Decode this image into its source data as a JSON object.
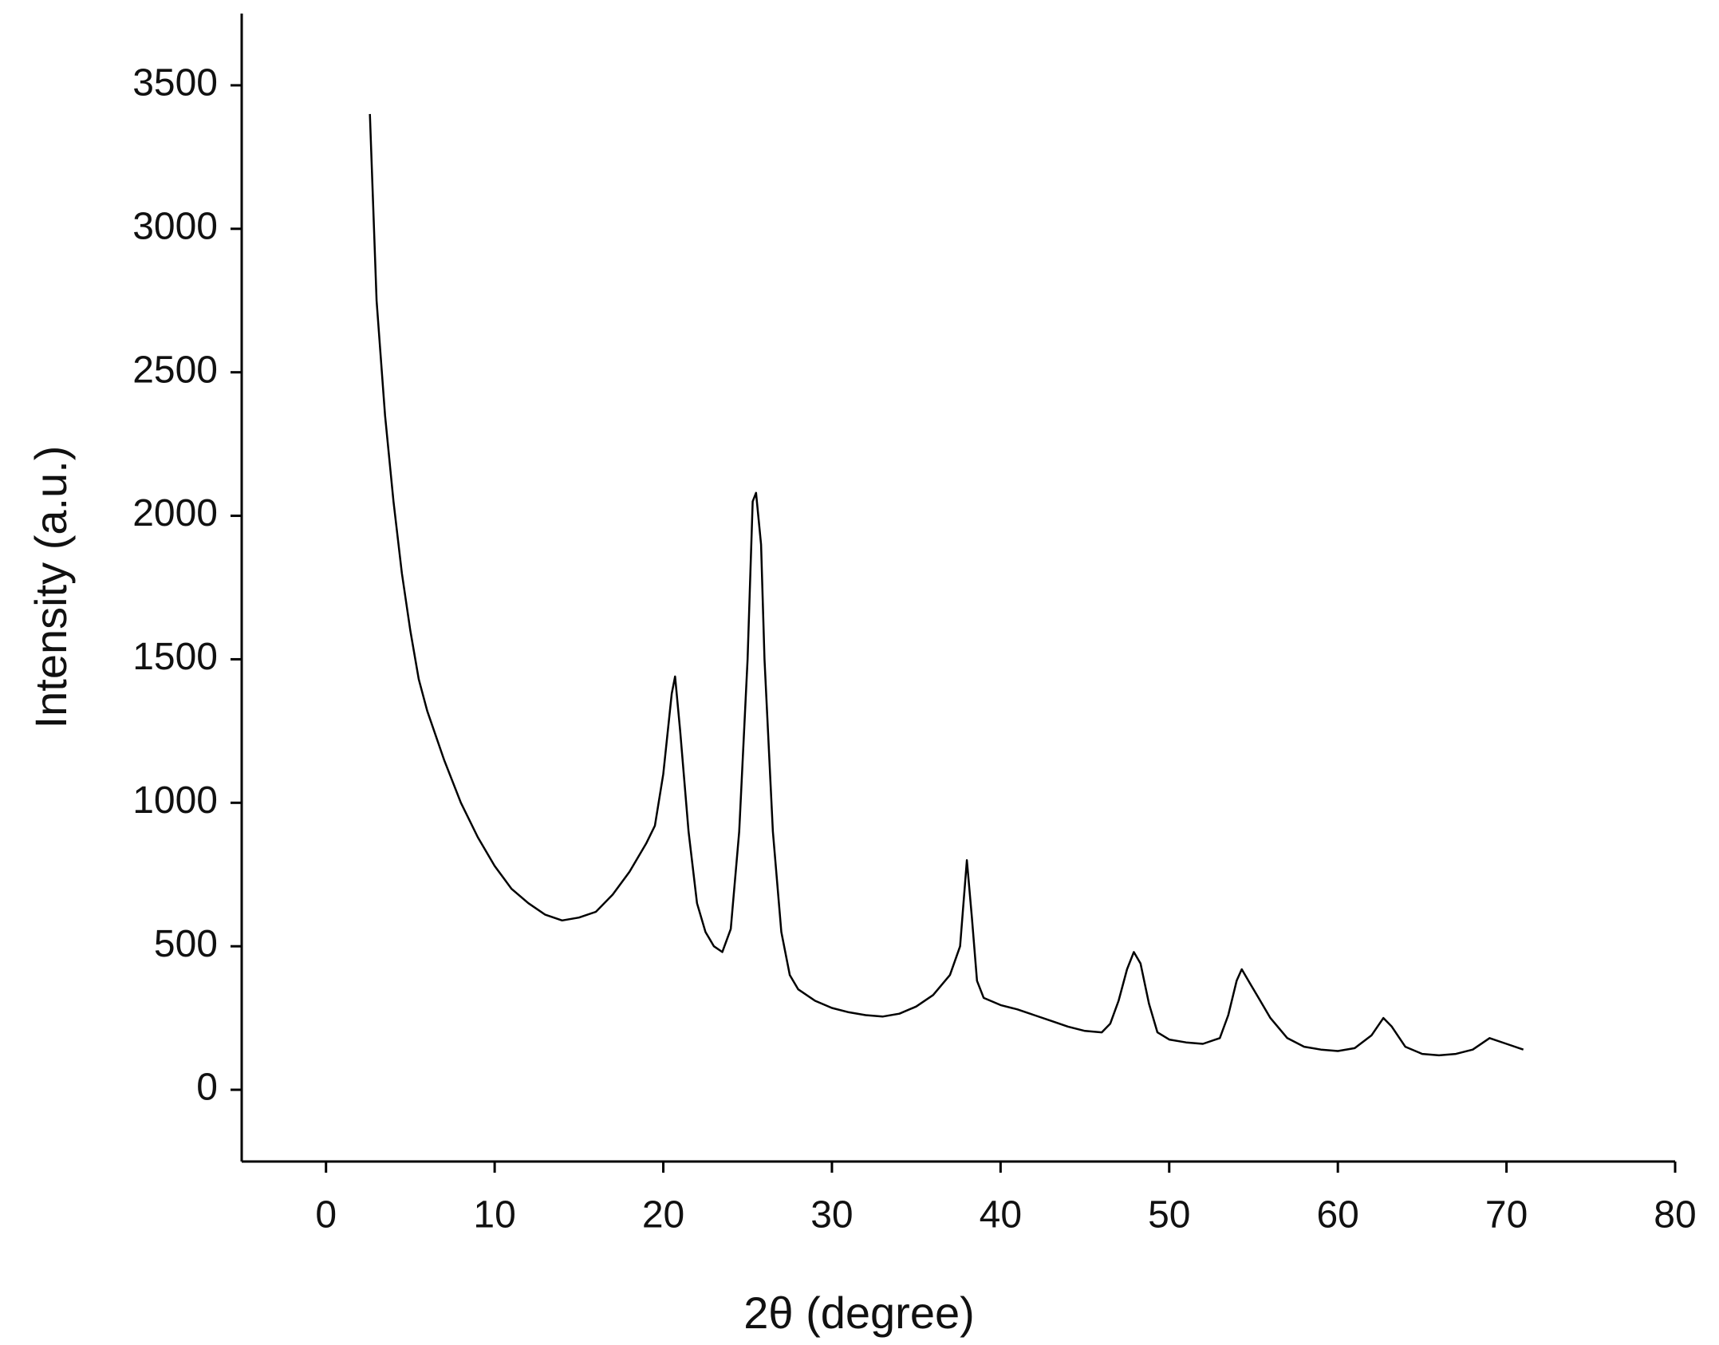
{
  "chart_data": {
    "type": "line",
    "x_label": "2θ (degree)",
    "y_label": "Intensity (a.u.)",
    "xlim": [
      -5,
      80
    ],
    "ylim": [
      -250,
      3750
    ],
    "xticks": [
      0,
      10,
      20,
      30,
      40,
      50,
      60,
      70,
      80
    ],
    "yticks": [
      0,
      500,
      1000,
      1500,
      2000,
      2500,
      3000,
      3500
    ],
    "grid": false,
    "series": [
      {
        "color": "#000000",
        "x": [
          2.6,
          3,
          3.5,
          4,
          4.5,
          5,
          5.5,
          6,
          7,
          8,
          9,
          10,
          11,
          12,
          13,
          14,
          15,
          16,
          17,
          18,
          19,
          19.5,
          20,
          20.5,
          20.7,
          21,
          21.5,
          22,
          22.5,
          23,
          23.5,
          24,
          24.5,
          25,
          25.3,
          25.5,
          25.8,
          26,
          26.5,
          27,
          27.5,
          28,
          29,
          30,
          31,
          32,
          33,
          34,
          35,
          36,
          37,
          37.6,
          38,
          38.3,
          38.6,
          39,
          40,
          41,
          42,
          43,
          44,
          45,
          46,
          46.5,
          47,
          47.5,
          47.9,
          48.3,
          48.8,
          49.3,
          50,
          51,
          52,
          53,
          53.5,
          54,
          54.3,
          54.8,
          55.3,
          56,
          57,
          58,
          59,
          60,
          61,
          62,
          62.7,
          63.2,
          64,
          65,
          66,
          67,
          68,
          69,
          70,
          71
        ],
        "values": [
          3400,
          2750,
          2350,
          2050,
          1800,
          1600,
          1430,
          1320,
          1150,
          1000,
          880,
          780,
          700,
          650,
          610,
          590,
          600,
          620,
          680,
          760,
          860,
          920,
          1100,
          1380,
          1440,
          1250,
          900,
          650,
          550,
          500,
          480,
          560,
          900,
          1500,
          2050,
          2080,
          1900,
          1500,
          900,
          550,
          400,
          350,
          310,
          285,
          270,
          260,
          255,
          265,
          290,
          330,
          400,
          500,
          800,
          600,
          380,
          320,
          295,
          280,
          260,
          240,
          220,
          205,
          200,
          230,
          310,
          420,
          480,
          440,
          300,
          200,
          175,
          165,
          160,
          180,
          260,
          380,
          420,
          370,
          320,
          250,
          180,
          150,
          140,
          135,
          145,
          190,
          250,
          220,
          150,
          125,
          120,
          125,
          140,
          180,
          160,
          140
        ]
      }
    ]
  }
}
